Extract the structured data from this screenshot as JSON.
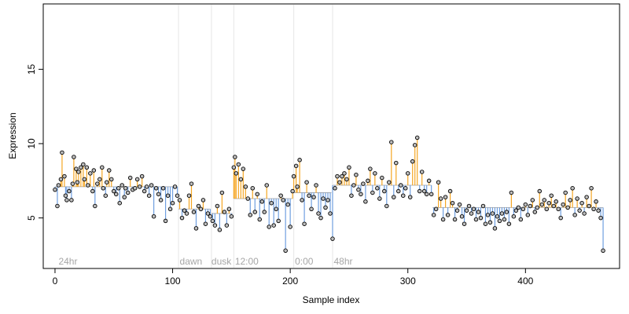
{
  "chart_data": {
    "type": "scatter",
    "subtype": "expression-vs-sample-index with segment means",
    "title": "",
    "xlabel": "Sample index",
    "ylabel": "Expression",
    "xlim": [
      -10,
      480
    ],
    "ylim": [
      1.6,
      19.4
    ],
    "x_ticks": [
      0,
      100,
      200,
      300,
      400
    ],
    "y_ticks": [
      5,
      10,
      15
    ],
    "grid": false,
    "legend": "none",
    "colors": {
      "above_mean": "#f5a623",
      "below_mean": "#6f9fe0",
      "divider": "#e6e6e6",
      "point_fill": "#bdbdbd",
      "point_stroke": "#000000",
      "group_label": "#a6a6a6"
    },
    "dividers": [
      105,
      133,
      152,
      203,
      236
    ],
    "group_labels": [
      {
        "text": "24hr",
        "x": 3
      },
      {
        "text": "dawn",
        "x": 106
      },
      {
        "text": "dusk",
        "x": 133
      },
      {
        "text": "12:00",
        "x": 153
      },
      {
        "text": "0:00",
        "x": 204
      },
      {
        "text": "48hr",
        "x": 237
      }
    ],
    "segments": [
      {
        "start": 0,
        "end": 104,
        "mean": 7.1
      },
      {
        "start": 105,
        "end": 132,
        "mean": 5.6
      },
      {
        "start": 133,
        "end": 151,
        "mean": 5.3
      },
      {
        "start": 152,
        "end": 202,
        "mean": 6.3
      },
      {
        "start": 203,
        "end": 235,
        "mean": 6.7
      },
      {
        "start": 236,
        "end": 320,
        "mean": 7.2
      },
      {
        "start": 321,
        "end": 466,
        "mean": 5.7
      }
    ],
    "series": [
      {
        "points": [
          [
            0,
            6.9
          ],
          [
            2,
            5.8
          ],
          [
            3,
            7.2
          ],
          [
            5,
            7.6
          ],
          [
            6,
            9.4
          ],
          [
            8,
            7.8
          ],
          [
            9,
            6.5
          ],
          [
            10,
            6.2
          ],
          [
            12,
            6.8
          ],
          [
            14,
            6.2
          ],
          [
            15,
            7.3
          ],
          [
            16,
            9.1
          ],
          [
            18,
            8.3
          ],
          [
            19,
            7.4
          ],
          [
            20,
            8.1
          ],
          [
            22,
            8.4
          ],
          [
            24,
            8.6
          ],
          [
            25,
            7.6
          ],
          [
            27,
            8.4
          ],
          [
            28,
            7.2
          ],
          [
            30,
            8.0
          ],
          [
            32,
            6.8
          ],
          [
            33,
            8.2
          ],
          [
            34,
            5.8
          ],
          [
            36,
            7.3
          ],
          [
            38,
            7.6
          ],
          [
            40,
            8.4
          ],
          [
            41,
            7.0
          ],
          [
            43,
            6.5
          ],
          [
            44,
            7.4
          ],
          [
            46,
            8.2
          ],
          [
            48,
            7.6
          ],
          [
            50,
            6.8
          ],
          [
            52,
            6.6
          ],
          [
            54,
            7.0
          ],
          [
            55,
            6.0
          ],
          [
            57,
            7.2
          ],
          [
            59,
            6.4
          ],
          [
            60,
            7.0
          ],
          [
            62,
            6.7
          ],
          [
            64,
            7.7
          ],
          [
            66,
            6.9
          ],
          [
            68,
            7.0
          ],
          [
            70,
            7.6
          ],
          [
            72,
            7.1
          ],
          [
            74,
            7.8
          ],
          [
            76,
            6.8
          ],
          [
            78,
            7.1
          ],
          [
            80,
            6.5
          ],
          [
            82,
            7.2
          ],
          [
            84,
            5.1
          ],
          [
            86,
            7.0
          ],
          [
            88,
            6.6
          ],
          [
            90,
            6.2
          ],
          [
            92,
            7.0
          ],
          [
            94,
            4.8
          ],
          [
            96,
            6.5
          ],
          [
            98,
            5.6
          ],
          [
            100,
            6.0
          ],
          [
            102,
            7.1
          ],
          [
            104,
            6.5
          ],
          [
            106,
            6.2
          ],
          [
            108,
            5.0
          ],
          [
            110,
            5.5
          ],
          [
            112,
            5.3
          ],
          [
            114,
            6.5
          ],
          [
            116,
            7.3
          ],
          [
            118,
            5.4
          ],
          [
            120,
            4.3
          ],
          [
            122,
            5.8
          ],
          [
            124,
            5.6
          ],
          [
            126,
            6.2
          ],
          [
            128,
            4.6
          ],
          [
            130,
            5.3
          ],
          [
            132,
            5.1
          ],
          [
            134,
            4.8
          ],
          [
            136,
            4.5
          ],
          [
            138,
            5.8
          ],
          [
            140,
            4.2
          ],
          [
            142,
            6.7
          ],
          [
            144,
            5.4
          ],
          [
            146,
            4.5
          ],
          [
            148,
            5.6
          ],
          [
            150,
            5.1
          ],
          [
            152,
            8.4
          ],
          [
            153,
            9.1
          ],
          [
            154,
            8.0
          ],
          [
            156,
            8.6
          ],
          [
            158,
            7.6
          ],
          [
            160,
            8.3
          ],
          [
            162,
            7.1
          ],
          [
            164,
            6.3
          ],
          [
            166,
            5.2
          ],
          [
            168,
            7.0
          ],
          [
            170,
            5.4
          ],
          [
            172,
            6.6
          ],
          [
            174,
            4.9
          ],
          [
            176,
            6.1
          ],
          [
            178,
            5.4
          ],
          [
            180,
            7.2
          ],
          [
            182,
            4.4
          ],
          [
            184,
            6.0
          ],
          [
            186,
            4.5
          ],
          [
            188,
            5.6
          ],
          [
            190,
            4.8
          ],
          [
            192,
            6.5
          ],
          [
            194,
            6.2
          ],
          [
            196,
            2.8
          ],
          [
            198,
            5.9
          ],
          [
            200,
            4.4
          ],
          [
            202,
            6.8
          ],
          [
            203,
            7.8
          ],
          [
            205,
            8.5
          ],
          [
            206,
            7.1
          ],
          [
            208,
            8.9
          ],
          [
            210,
            6.2
          ],
          [
            212,
            4.6
          ],
          [
            214,
            7.4
          ],
          [
            216,
            6.5
          ],
          [
            218,
            5.6
          ],
          [
            220,
            6.4
          ],
          [
            222,
            7.2
          ],
          [
            224,
            5.3
          ],
          [
            226,
            5.0
          ],
          [
            228,
            6.3
          ],
          [
            230,
            5.7
          ],
          [
            232,
            6.2
          ],
          [
            234,
            5.3
          ],
          [
            236,
            3.6
          ],
          [
            238,
            7.0
          ],
          [
            240,
            7.8
          ],
          [
            242,
            7.4
          ],
          [
            244,
            7.8
          ],
          [
            246,
            8.0
          ],
          [
            248,
            7.6
          ],
          [
            250,
            8.4
          ],
          [
            252,
            6.5
          ],
          [
            254,
            7.2
          ],
          [
            256,
            7.9
          ],
          [
            258,
            6.9
          ],
          [
            260,
            6.6
          ],
          [
            262,
            7.3
          ],
          [
            264,
            6.1
          ],
          [
            266,
            7.5
          ],
          [
            268,
            8.3
          ],
          [
            270,
            6.7
          ],
          [
            272,
            8.0
          ],
          [
            274,
            7.0
          ],
          [
            276,
            6.3
          ],
          [
            278,
            7.7
          ],
          [
            280,
            6.8
          ],
          [
            282,
            5.8
          ],
          [
            284,
            7.4
          ],
          [
            286,
            10.1
          ],
          [
            288,
            6.4
          ],
          [
            290,
            8.7
          ],
          [
            292,
            6.8
          ],
          [
            294,
            7.2
          ],
          [
            296,
            6.5
          ],
          [
            298,
            7.0
          ],
          [
            300,
            8.0
          ],
          [
            302,
            6.4
          ],
          [
            304,
            8.8
          ],
          [
            306,
            9.9
          ],
          [
            308,
            10.4
          ],
          [
            310,
            6.8
          ],
          [
            312,
            8.1
          ],
          [
            314,
            6.8
          ],
          [
            316,
            6.6
          ],
          [
            318,
            7.5
          ],
          [
            320,
            6.6
          ],
          [
            322,
            5.2
          ],
          [
            324,
            5.6
          ],
          [
            326,
            7.4
          ],
          [
            328,
            6.3
          ],
          [
            330,
            4.9
          ],
          [
            332,
            6.4
          ],
          [
            334,
            5.2
          ],
          [
            336,
            6.8
          ],
          [
            338,
            6.0
          ],
          [
            340,
            4.9
          ],
          [
            342,
            5.5
          ],
          [
            344,
            5.9
          ],
          [
            346,
            5.1
          ],
          [
            348,
            4.6
          ],
          [
            350,
            5.5
          ],
          [
            352,
            5.8
          ],
          [
            354,
            5.3
          ],
          [
            356,
            5.6
          ],
          [
            358,
            4.9
          ],
          [
            360,
            5.4
          ],
          [
            362,
            5.0
          ],
          [
            364,
            5.8
          ],
          [
            366,
            4.6
          ],
          [
            368,
            5.2
          ],
          [
            370,
            4.7
          ],
          [
            372,
            5.3
          ],
          [
            374,
            4.3
          ],
          [
            376,
            5.1
          ],
          [
            378,
            4.8
          ],
          [
            380,
            5.3
          ],
          [
            382,
            4.9
          ],
          [
            384,
            5.4
          ],
          [
            386,
            4.6
          ],
          [
            388,
            6.7
          ],
          [
            390,
            5.1
          ],
          [
            392,
            5.5
          ],
          [
            394,
            5.7
          ],
          [
            396,
            4.9
          ],
          [
            398,
            5.6
          ],
          [
            400,
            5.9
          ],
          [
            402,
            5.2
          ],
          [
            404,
            5.8
          ],
          [
            406,
            6.2
          ],
          [
            408,
            5.4
          ],
          [
            410,
            5.7
          ],
          [
            412,
            6.8
          ],
          [
            414,
            5.9
          ],
          [
            416,
            6.2
          ],
          [
            418,
            5.6
          ],
          [
            420,
            6.0
          ],
          [
            422,
            6.5
          ],
          [
            424,
            5.8
          ],
          [
            426,
            6.1
          ],
          [
            428,
            5.6
          ],
          [
            430,
            5.0
          ],
          [
            432,
            5.9
          ],
          [
            434,
            6.7
          ],
          [
            436,
            5.7
          ],
          [
            438,
            6.2
          ],
          [
            440,
            7.0
          ],
          [
            442,
            5.2
          ],
          [
            444,
            6.3
          ],
          [
            446,
            5.5
          ],
          [
            448,
            6.0
          ],
          [
            450,
            5.3
          ],
          [
            452,
            6.4
          ],
          [
            454,
            5.8
          ],
          [
            456,
            7.0
          ],
          [
            458,
            5.6
          ],
          [
            460,
            6.1
          ],
          [
            462,
            5.5
          ],
          [
            464,
            5.0
          ],
          [
            466,
            2.8
          ]
        ]
      }
    ]
  }
}
